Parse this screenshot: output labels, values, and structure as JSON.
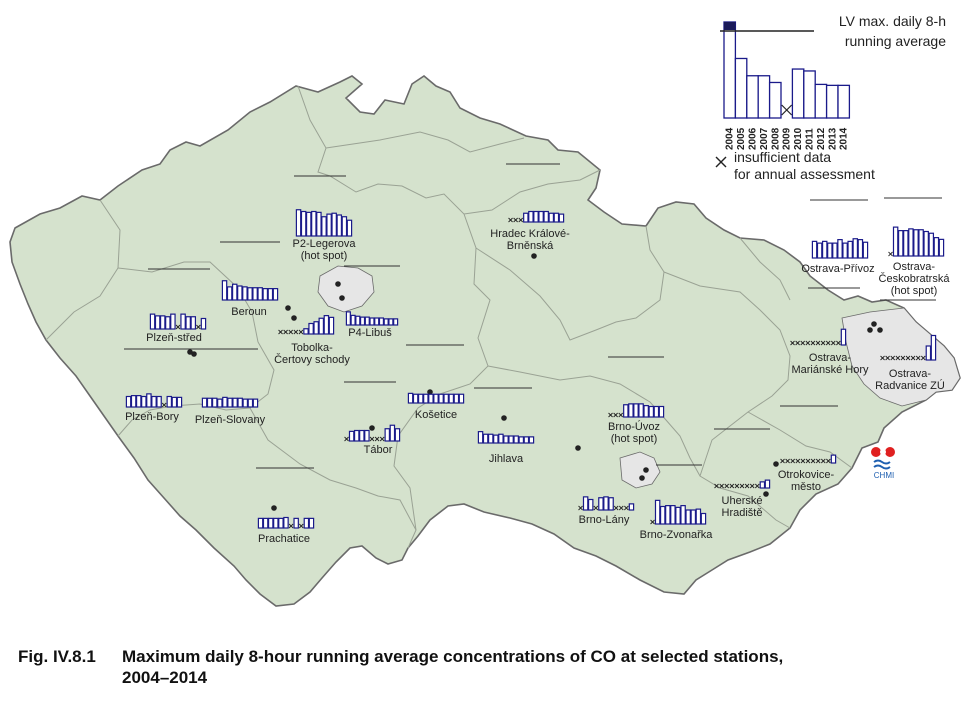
{
  "colors": {
    "land": "#d5e2cd",
    "border": "#6a6a6a",
    "region_line": "#9aa294",
    "hotspot_area": "#e6e6e6",
    "bar_stroke": "#1a1a8a",
    "bar_fill": "#ffffff",
    "legend_2004_fill": "#1a1a5a",
    "text": "#222222"
  },
  "legend": {
    "lv_label_line1": "LV max. daily 8-h",
    "lv_label_line2": "running average",
    "years": [
      "2004",
      "2005",
      "2006",
      "2007",
      "2008",
      "2009",
      "2010",
      "2011",
      "2012",
      "2013",
      "2014"
    ],
    "example_values": [
      1.0,
      0.62,
      0.44,
      0.44,
      0.37,
      0.24,
      0.51,
      0.49,
      0.35,
      0.34,
      0.34
    ],
    "example_missing": [
      false,
      false,
      false,
      false,
      false,
      true,
      false,
      false,
      false,
      false,
      false
    ],
    "insufficient_line1": "insufficient data",
    "insufficient_line2": "for annual assessment",
    "insufficient_icon": "cross-mark-icon"
  },
  "logo": {
    "text": "CHMI",
    "icon": "chmi-logo-icon"
  },
  "caption": {
    "number": "Fig. IV.8.1",
    "title_line1": "Maximum daily 8-hour running average concentrations of CO at selected stations,",
    "title_line2": "2004–2014"
  },
  "stations": [
    {
      "id": "p2-legerova",
      "label": [
        "P2-Legerova",
        "(hot spot)"
      ],
      "values": [
        0.3,
        0.28,
        0.27,
        0.28,
        0.27,
        0.22,
        0.25,
        0.26,
        0.24,
        0.22,
        0.18
      ],
      "missing": [
        false,
        false,
        false,
        false,
        false,
        false,
        false,
        false,
        false,
        false,
        false
      ]
    },
    {
      "id": "p4-libus",
      "label": [
        "P4-Libuš"
      ],
      "values": [
        0.15,
        0.11,
        0.1,
        0.09,
        0.09,
        0.08,
        0.08,
        0.08,
        0.07,
        0.07,
        0.07
      ],
      "missing": [
        false,
        false,
        false,
        false,
        false,
        false,
        false,
        false,
        false,
        false,
        false
      ]
    },
    {
      "id": "beroun",
      "label": [
        "Beroun"
      ],
      "values": [
        0.22,
        0.15,
        0.18,
        0.16,
        0.15,
        0.14,
        0.14,
        0.14,
        0.13,
        0.13,
        0.13
      ],
      "missing": [
        false,
        false,
        false,
        false,
        false,
        false,
        false,
        false,
        false,
        false,
        false
      ]
    },
    {
      "id": "tobolka",
      "label": [
        "Tobolka-",
        "Čertovy schody"
      ],
      "values": [
        0,
        0,
        0,
        0,
        0,
        0.06,
        0.12,
        0.14,
        0.18,
        0.21,
        0.19
      ],
      "missing": [
        true,
        true,
        true,
        true,
        true,
        false,
        false,
        false,
        false,
        false,
        false
      ]
    },
    {
      "id": "plzen-stred",
      "label": [
        "Plzeň-střed"
      ],
      "values": [
        0.17,
        0.15,
        0.15,
        0.14,
        0.17,
        0,
        0.17,
        0.14,
        0.14,
        0,
        0.12
      ],
      "missing": [
        false,
        false,
        false,
        false,
        false,
        true,
        false,
        false,
        false,
        true,
        false
      ]
    },
    {
      "id": "plzen-bory",
      "label": [
        "Plzeň-Bory"
      ],
      "values": [
        0.12,
        0.13,
        0.13,
        0.12,
        0.15,
        0.12,
        0.12,
        0,
        0.12,
        0.11,
        0.11
      ],
      "missing": [
        false,
        false,
        false,
        false,
        false,
        false,
        false,
        true,
        false,
        false,
        false
      ]
    },
    {
      "id": "plzen-slovany",
      "label": [
        "Plzeň-Slovany"
      ],
      "values": [
        0.1,
        0.1,
        0.1,
        0.09,
        0.11,
        0.1,
        0.1,
        0.1,
        0.09,
        0.09,
        0.09
      ],
      "missing": [
        false,
        false,
        false,
        false,
        false,
        false,
        false,
        false,
        false,
        false,
        false
      ]
    },
    {
      "id": "tabor",
      "label": [
        "Tábor"
      ],
      "values": [
        0,
        0.11,
        0.12,
        0.12,
        0.12,
        0,
        0,
        0,
        0.14,
        0.18,
        0.14
      ],
      "missing": [
        true,
        false,
        false,
        false,
        false,
        true,
        true,
        true,
        false,
        false,
        false
      ]
    },
    {
      "id": "kosetice",
      "label": [
        "Košetice"
      ],
      "values": [
        0.11,
        0.1,
        0.1,
        0.1,
        0.1,
        0.1,
        0.1,
        0.1,
        0.1,
        0.1,
        0.1
      ],
      "missing": [
        false,
        false,
        false,
        false,
        false,
        false,
        false,
        false,
        false,
        false,
        false
      ]
    },
    {
      "id": "jihlava",
      "label": [
        "Jihlava"
      ],
      "values": [
        0.13,
        0.1,
        0.1,
        0.09,
        0.1,
        0.08,
        0.08,
        0.08,
        0.07,
        0.07,
        0.07
      ],
      "missing": [
        false,
        false,
        false,
        false,
        false,
        false,
        false,
        false,
        false,
        false,
        false
      ]
    },
    {
      "id": "prachatice",
      "label": [
        "Prachatice"
      ],
      "values": [
        0.11,
        0.11,
        0.11,
        0.11,
        0.11,
        0.12,
        0,
        0.11,
        0,
        0.11,
        0.11
      ],
      "missing": [
        false,
        false,
        false,
        false,
        false,
        false,
        true,
        false,
        true,
        false,
        false
      ]
    },
    {
      "id": "hradec",
      "label": [
        "Hradec Králové-",
        "Brněnská"
      ],
      "values": [
        0,
        0,
        0,
        0.1,
        0.12,
        0.12,
        0.12,
        0.12,
        0.1,
        0.1,
        0.09
      ],
      "missing": [
        true,
        true,
        true,
        false,
        false,
        false,
        false,
        false,
        false,
        false,
        false
      ]
    },
    {
      "id": "brno-uvoz",
      "label": [
        "Brno-Úvoz",
        "(hot spot)"
      ],
      "values": [
        0,
        0,
        0,
        0.14,
        0.15,
        0.15,
        0.15,
        0.13,
        0.12,
        0.12,
        0.12
      ],
      "missing": [
        true,
        true,
        true,
        false,
        false,
        false,
        false,
        false,
        false,
        false,
        false
      ]
    },
    {
      "id": "brno-lany",
      "label": [
        "Brno-Lány"
      ],
      "values": [
        0,
        0.15,
        0.12,
        0,
        0.14,
        0.15,
        0.14,
        0,
        0,
        0,
        0.07
      ],
      "missing": [
        true,
        false,
        false,
        true,
        false,
        false,
        false,
        true,
        true,
        true,
        false
      ]
    },
    {
      "id": "brno-zvonarka",
      "label": [
        "Brno-Zvonařka"
      ],
      "values": [
        0,
        0.27,
        0.2,
        0.21,
        0.21,
        0.19,
        0.21,
        0.16,
        0.16,
        0.17,
        0.12
      ],
      "missing": [
        true,
        false,
        false,
        false,
        false,
        false,
        false,
        false,
        false,
        false,
        false
      ]
    },
    {
      "id": "uherske",
      "label": [
        "Uherské",
        "Hradiště"
      ],
      "values": [
        0,
        0,
        0,
        0,
        0,
        0,
        0,
        0,
        0,
        0.07,
        0.09
      ],
      "missing": [
        true,
        true,
        true,
        true,
        true,
        true,
        true,
        true,
        true,
        false,
        false
      ]
    },
    {
      "id": "otrokovice",
      "label": [
        "Otrokovice-",
        "město"
      ],
      "values": [
        0,
        0,
        0,
        0,
        0,
        0,
        0,
        0,
        0,
        0,
        0.09
      ],
      "missing": [
        true,
        true,
        true,
        true,
        true,
        true,
        true,
        true,
        true,
        true,
        false
      ]
    },
    {
      "id": "ostrava-privoz",
      "label": [
        "Ostrava-Přívoz"
      ],
      "values": [
        0.19,
        0.17,
        0.19,
        0.17,
        0.17,
        0.21,
        0.17,
        0.19,
        0.22,
        0.21,
        0.18
      ],
      "missing": [
        false,
        false,
        false,
        false,
        false,
        false,
        false,
        false,
        false,
        false,
        false
      ]
    },
    {
      "id": "ostrava-ceskobratrska",
      "label": [
        "Ostrava-",
        "Českobratrská",
        "(hot spot)"
      ],
      "values": [
        0,
        0.33,
        0.29,
        0.29,
        0.31,
        0.3,
        0.3,
        0.28,
        0.26,
        0.21,
        0.19
      ],
      "missing": [
        true,
        false,
        false,
        false,
        false,
        false,
        false,
        false,
        false,
        false,
        false
      ]
    },
    {
      "id": "ostrava-marianske",
      "label": [
        "Ostrava-",
        "Mariánské Hory"
      ],
      "values": [
        0,
        0,
        0,
        0,
        0,
        0,
        0,
        0,
        0,
        0,
        0.18
      ],
      "missing": [
        true,
        true,
        true,
        true,
        true,
        true,
        true,
        true,
        true,
        true,
        false
      ]
    },
    {
      "id": "ostrava-radvanice",
      "label": [
        "Ostrava-",
        "Radvanice ZÚ"
      ],
      "values": [
        0,
        0,
        0,
        0,
        0,
        0,
        0,
        0,
        0,
        0.16,
        0.28
      ],
      "missing": [
        true,
        true,
        true,
        true,
        true,
        true,
        true,
        true,
        true,
        false,
        false
      ]
    }
  ]
}
